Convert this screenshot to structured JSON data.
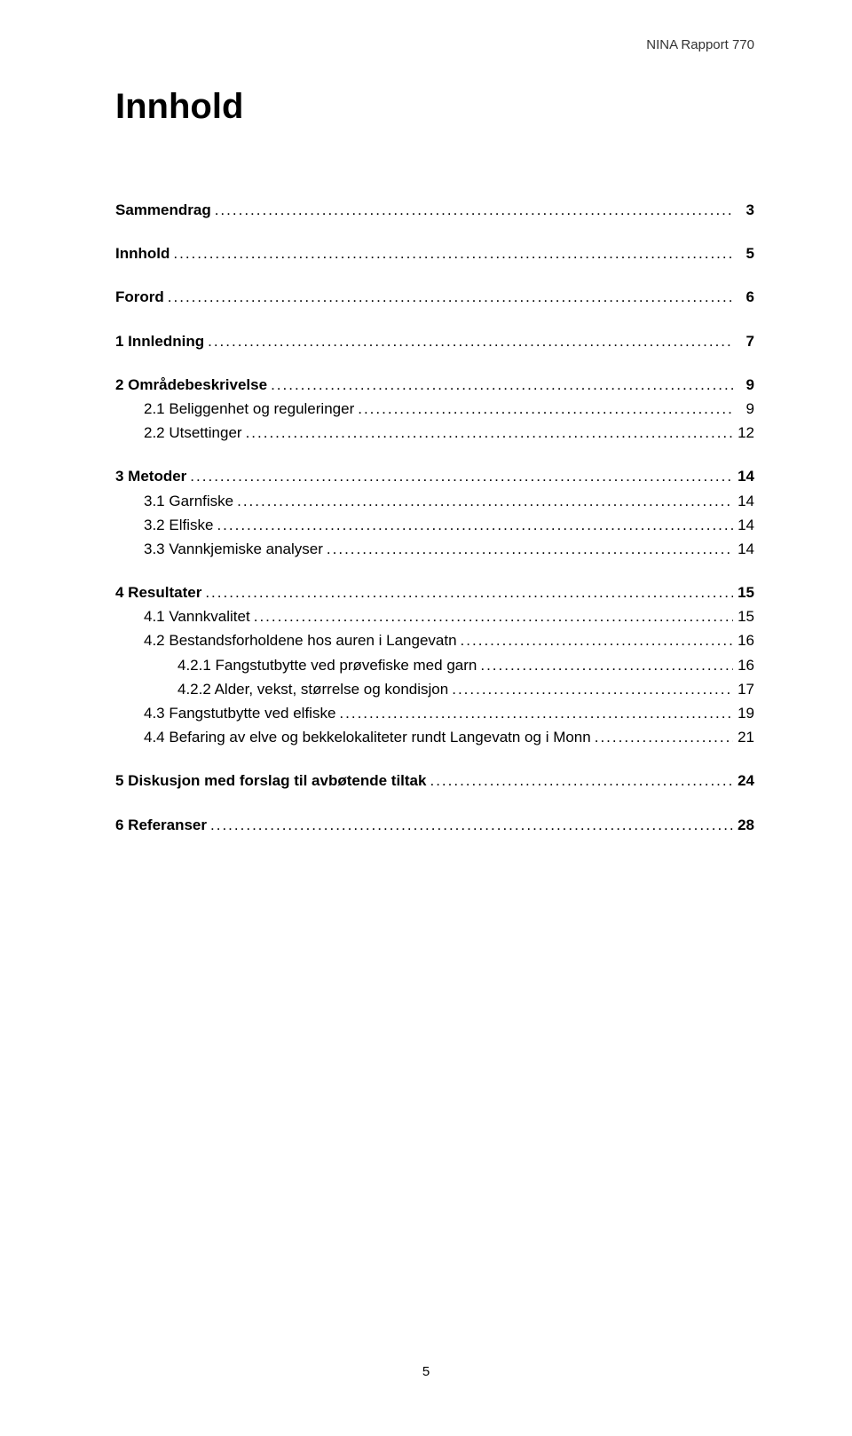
{
  "header": "NINA Rapport 770",
  "title": "Innhold",
  "footer": "5",
  "toc": [
    {
      "type": "row",
      "label": "Sammendrag",
      "page": "3",
      "indent": 0,
      "bold": true
    },
    {
      "type": "gap"
    },
    {
      "type": "row",
      "label": "Innhold",
      "page": "5",
      "indent": 0,
      "bold": true
    },
    {
      "type": "gap"
    },
    {
      "type": "row",
      "label": "Forord",
      "page": "6",
      "indent": 0,
      "bold": true
    },
    {
      "type": "gap"
    },
    {
      "type": "row",
      "label": "1  Innledning",
      "page": "7",
      "indent": 0,
      "bold": true
    },
    {
      "type": "gap"
    },
    {
      "type": "row",
      "label": "2  Områdebeskrivelse",
      "page": "9",
      "indent": 0,
      "bold": true
    },
    {
      "type": "row",
      "label": "2.1  Beliggenhet og reguleringer",
      "page": "9",
      "indent": 1,
      "bold": false
    },
    {
      "type": "row",
      "label": "2.2  Utsettinger",
      "page": "12",
      "indent": 1,
      "bold": false
    },
    {
      "type": "gap"
    },
    {
      "type": "row",
      "label": "3  Metoder",
      "page": "14",
      "indent": 0,
      "bold": true
    },
    {
      "type": "row",
      "label": "3.1  Garnfiske",
      "page": "14",
      "indent": 1,
      "bold": false
    },
    {
      "type": "row",
      "label": "3.2  Elfiske",
      "page": "14",
      "indent": 1,
      "bold": false
    },
    {
      "type": "row",
      "label": "3.3  Vannkjemiske analyser",
      "page": "14",
      "indent": 1,
      "bold": false
    },
    {
      "type": "gap"
    },
    {
      "type": "row",
      "label": "4  Resultater",
      "page": "15",
      "indent": 0,
      "bold": true
    },
    {
      "type": "row",
      "label": "4.1  Vannkvalitet",
      "page": "15",
      "indent": 1,
      "bold": false
    },
    {
      "type": "row",
      "label": "4.2  Bestandsforholdene hos auren i Langevatn",
      "page": "16",
      "indent": 1,
      "bold": false
    },
    {
      "type": "row",
      "label": "4.2.1  Fangstutbytte ved prøvefiske med garn",
      "page": "16",
      "indent": 2,
      "bold": false
    },
    {
      "type": "row",
      "label": "4.2.2  Alder, vekst, størrelse og kondisjon",
      "page": "17",
      "indent": 2,
      "bold": false
    },
    {
      "type": "row",
      "label": "4.3  Fangstutbytte ved elfiske",
      "page": "19",
      "indent": 1,
      "bold": false
    },
    {
      "type": "row",
      "label": "4.4  Befaring av elve og bekkelokaliteter rundt Langevatn og i Monn",
      "page": "21",
      "indent": 1,
      "bold": false
    },
    {
      "type": "gap"
    },
    {
      "type": "row",
      "label": "5 Diskusjon med forslag til avbøtende tiltak",
      "page": "24",
      "indent": 0,
      "bold": true
    },
    {
      "type": "gap"
    },
    {
      "type": "row",
      "label": "6 Referanser",
      "page": "28",
      "indent": 0,
      "bold": true
    }
  ]
}
